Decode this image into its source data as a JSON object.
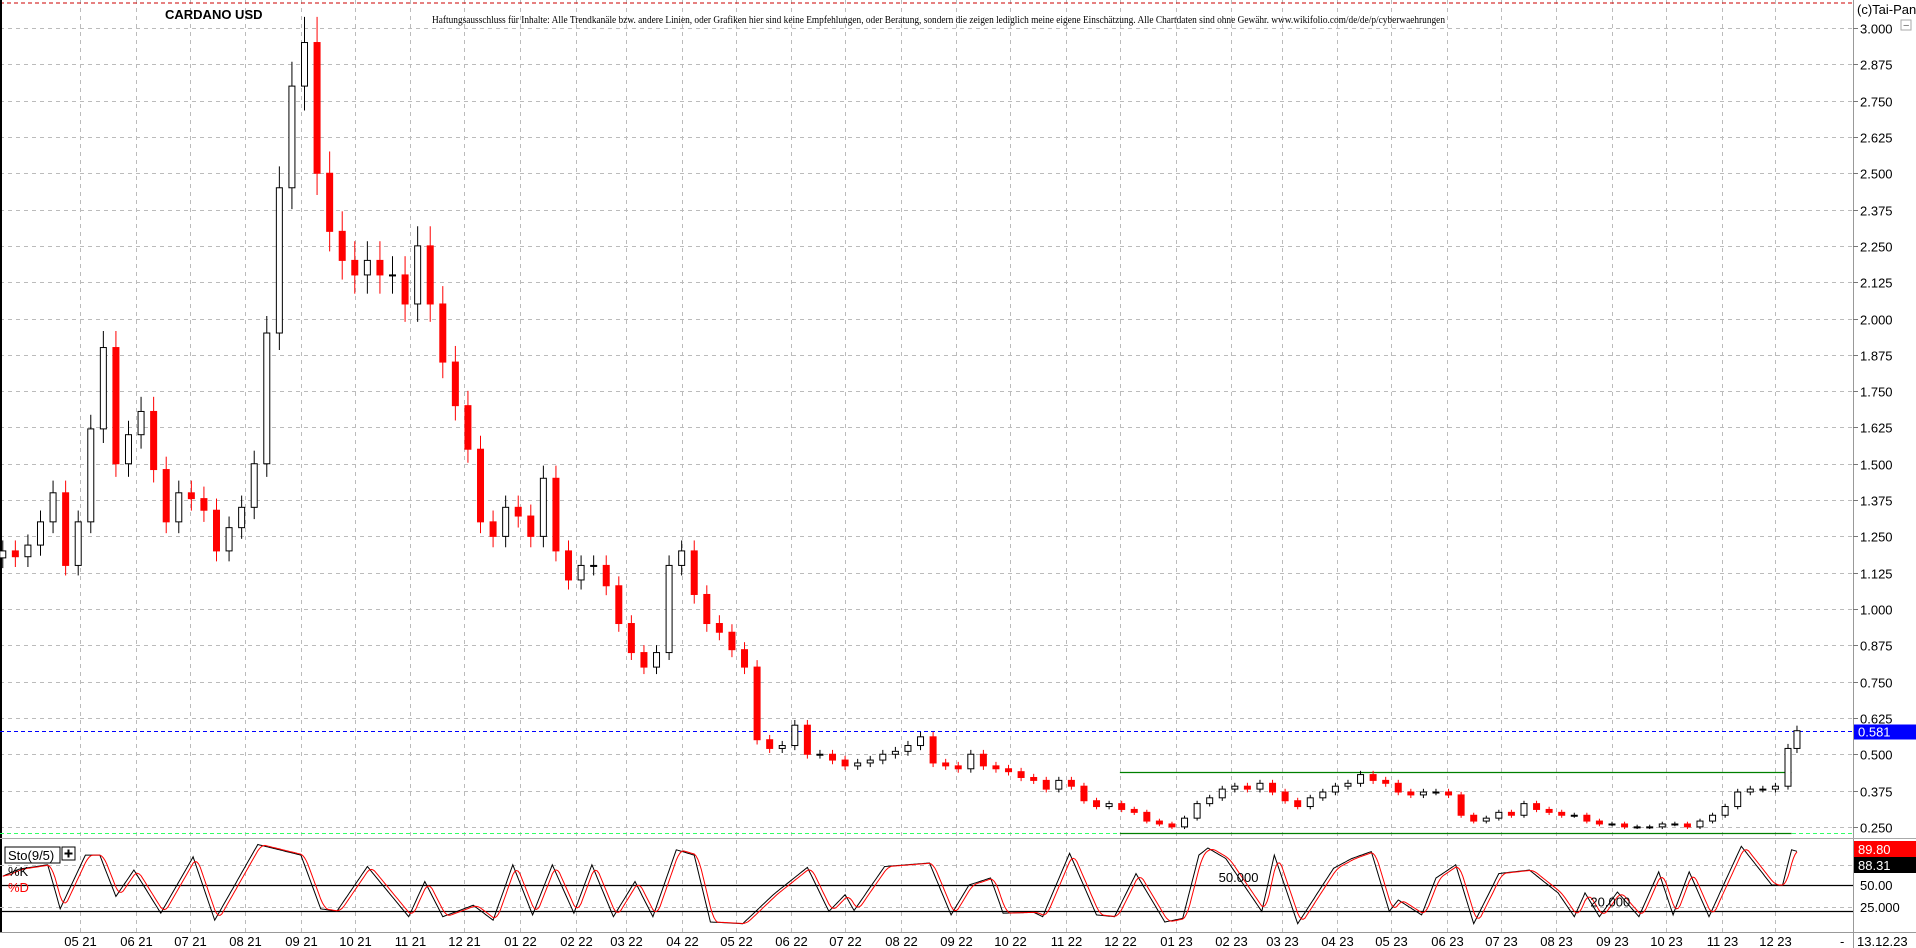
{
  "header": {
    "title": "CARDANO USD",
    "disclaimer": "Haftungsausschluss für Inhalte: Alle Trendkanäle bzw. andere Linien, oder Grafiken hier sind keine Empfehlungen, oder Beratung, sondern die zeigen lediglich meine eigene Einschätzung. Alle Chartdaten sind ohne Gewähr.  www.wikifolio.com/de/de/p/cyberwaehrungen",
    "copyright": "(c)Tai-Pan",
    "collapse_symbol": "−"
  },
  "footer": {
    "dash": "-",
    "current_date": "13.12.23"
  },
  "colors": {
    "up_fill": "#ffffff",
    "up_stroke": "#000000",
    "down": "#ff0000",
    "last_price_badge": "#0000ff",
    "support_line": "#008000",
    "support_dashed": "#33ff66",
    "top_line": "#cc0000",
    "k_line": "#000000",
    "d_line": "#ff0000"
  },
  "chart_data": {
    "type": "candlestick",
    "title": "CARDANO USD",
    "y_ticks": [
      "0.250",
      "0.375",
      "0.500",
      "0.625",
      "0.750",
      "0.875",
      "1.000",
      "1.125",
      "1.250",
      "1.375",
      "1.500",
      "1.625",
      "1.750",
      "1.875",
      "2.000",
      "2.125",
      "2.250",
      "2.375",
      "2.500",
      "2.625",
      "2.750",
      "2.875",
      "3.000"
    ],
    "ylim": [
      0.22,
      3.0
    ],
    "x_labels": [
      {
        "date": "2021-05-01",
        "label": "05 21"
      },
      {
        "date": "2021-06-01",
        "label": "06 21"
      },
      {
        "date": "2021-07-01",
        "label": "07 21"
      },
      {
        "date": "2021-08-01",
        "label": "08 21"
      },
      {
        "date": "2021-09-01",
        "label": "09 21"
      },
      {
        "date": "2021-10-01",
        "label": "10 21"
      },
      {
        "date": "2021-11-01",
        "label": "11 21"
      },
      {
        "date": "2021-12-01",
        "label": "12 21"
      },
      {
        "date": "2022-01-01",
        "label": "01 22"
      },
      {
        "date": "2022-02-01",
        "label": "02 22"
      },
      {
        "date": "2022-03-01",
        "label": "03 22"
      },
      {
        "date": "2022-04-01",
        "label": "04 22"
      },
      {
        "date": "2022-05-01",
        "label": "05 22"
      },
      {
        "date": "2022-06-01",
        "label": "06 22"
      },
      {
        "date": "2022-07-01",
        "label": "07 22"
      },
      {
        "date": "2022-08-01",
        "label": "08 22"
      },
      {
        "date": "2022-09-01",
        "label": "09 22"
      },
      {
        "date": "2022-10-01",
        "label": "10 22"
      },
      {
        "date": "2022-11-01",
        "label": "11 22"
      },
      {
        "date": "2022-12-01",
        "label": "12 22"
      },
      {
        "date": "2023-01-01",
        "label": "01 23"
      },
      {
        "date": "2023-02-01",
        "label": "02 23"
      },
      {
        "date": "2023-03-01",
        "label": "03 23"
      },
      {
        "date": "2023-04-01",
        "label": "04 23"
      },
      {
        "date": "2023-05-01",
        "label": "05 23"
      },
      {
        "date": "2023-06-01",
        "label": "06 23"
      },
      {
        "date": "2023-07-01",
        "label": "07 23"
      },
      {
        "date": "2023-08-01",
        "label": "08 23"
      },
      {
        "date": "2023-09-01",
        "label": "09 23"
      },
      {
        "date": "2023-10-01",
        "label": "10 23"
      },
      {
        "date": "2023-11-01",
        "label": "11 23"
      },
      {
        "date": "2023-12-01",
        "label": "12 23"
      }
    ],
    "start_date": "2021-03-19",
    "interval_days": 7,
    "weekly_closes": [
      1.2,
      1.18,
      1.22,
      1.3,
      1.4,
      1.15,
      1.3,
      1.62,
      1.9,
      1.5,
      1.6,
      1.68,
      1.48,
      1.3,
      1.4,
      1.38,
      1.34,
      1.2,
      1.28,
      1.35,
      1.5,
      1.95,
      2.45,
      2.8,
      2.95,
      2.5,
      2.3,
      2.2,
      2.15,
      2.2,
      2.15,
      2.15,
      2.05,
      2.25,
      2.05,
      1.85,
      1.7,
      1.55,
      1.3,
      1.25,
      1.35,
      1.32,
      1.25,
      1.45,
      1.2,
      1.1,
      1.15,
      1.15,
      1.08,
      0.95,
      0.85,
      0.8,
      0.85,
      1.15,
      1.2,
      1.05,
      0.95,
      0.92,
      0.86,
      0.8,
      0.55,
      0.52,
      0.53,
      0.6,
      0.5,
      0.5,
      0.48,
      0.46,
      0.47,
      0.48,
      0.5,
      0.51,
      0.53,
      0.56,
      0.47,
      0.46,
      0.45,
      0.5,
      0.46,
      0.45,
      0.44,
      0.42,
      0.41,
      0.38,
      0.41,
      0.39,
      0.34,
      0.32,
      0.33,
      0.31,
      0.3,
      0.27,
      0.26,
      0.25,
      0.28,
      0.33,
      0.35,
      0.38,
      0.39,
      0.38,
      0.4,
      0.37,
      0.34,
      0.32,
      0.35,
      0.37,
      0.39,
      0.4,
      0.43,
      0.41,
      0.4,
      0.37,
      0.36,
      0.37,
      0.37,
      0.36,
      0.29,
      0.27,
      0.28,
      0.3,
      0.29,
      0.33,
      0.31,
      0.3,
      0.29,
      0.29,
      0.27,
      0.26,
      0.26,
      0.25,
      0.25,
      0.25,
      0.26,
      0.26,
      0.25,
      0.27,
      0.29,
      0.32,
      0.37,
      0.38,
      0.38,
      0.39,
      0.52
    ],
    "final": {
      "date": "2023-12-13",
      "close": 0.581
    },
    "last_price_label": "0.581",
    "support_lines": [
      {
        "from": "2022-12-01",
        "to": "2023-12-10",
        "price": 0.44
      },
      {
        "from": "2022-12-01",
        "to": "2023-12-10",
        "price": 0.23
      }
    ],
    "support_dashed_price": 0.228,
    "last_price_line": 0.581,
    "stochastic": {
      "name": "Sto(9/5)",
      "k_label": "%K",
      "d_label": "%D",
      "d_period": 5,
      "ylim": [
        0,
        100
      ],
      "levels": [
        50,
        20
      ],
      "axis_labels": [
        {
          "value": 50,
          "label": "50.00"
        },
        {
          "value": 25,
          "label": "25.000"
        }
      ],
      "inline_labels": [
        {
          "value": 50,
          "date": "2023-01-25",
          "label": "50.000"
        },
        {
          "value": 22,
          "date": "2023-08-20",
          "label": "20.000"
        }
      ],
      "k_value_label": "88.31",
      "d_value_label": "89.80",
      "k_points": [
        [
          "2021-03-19",
          60
        ],
        [
          "2021-03-28",
          68
        ],
        [
          "2021-04-13",
          73
        ],
        [
          "2021-04-20",
          23
        ],
        [
          "2021-05-04",
          84
        ],
        [
          "2021-05-12",
          84
        ],
        [
          "2021-05-21",
          37
        ],
        [
          "2021-05-31",
          67
        ],
        [
          "2021-06-15",
          18
        ],
        [
          "2021-07-03",
          82
        ],
        [
          "2021-07-15",
          10
        ],
        [
          "2021-08-08",
          96
        ],
        [
          "2021-09-01",
          84
        ],
        [
          "2021-09-12",
          23
        ],
        [
          "2021-09-21",
          20
        ],
        [
          "2021-10-08",
          71
        ],
        [
          "2021-10-31",
          14
        ],
        [
          "2021-11-09",
          54
        ],
        [
          "2021-11-19",
          14
        ],
        [
          "2021-12-06",
          27
        ],
        [
          "2021-12-17",
          10
        ],
        [
          "2021-12-28",
          73
        ],
        [
          "2022-01-08",
          16
        ],
        [
          "2022-01-19",
          73
        ],
        [
          "2022-01-31",
          18
        ],
        [
          "2022-02-10",
          73
        ],
        [
          "2022-02-22",
          14
        ],
        [
          "2022-03-06",
          54
        ],
        [
          "2022-03-16",
          14
        ],
        [
          "2022-03-29",
          90
        ],
        [
          "2022-04-08",
          84
        ],
        [
          "2022-04-17",
          8
        ],
        [
          "2022-05-05",
          6
        ],
        [
          "2022-05-22",
          39
        ],
        [
          "2022-06-10",
          70
        ],
        [
          "2022-06-22",
          20
        ],
        [
          "2022-07-01",
          39
        ],
        [
          "2022-07-06",
          21
        ],
        [
          "2022-07-23",
          71
        ],
        [
          "2022-08-17",
          75
        ],
        [
          "2022-08-29",
          16
        ],
        [
          "2022-09-08",
          50
        ],
        [
          "2022-09-20",
          58
        ],
        [
          "2022-09-27",
          18
        ],
        [
          "2022-10-14",
          19
        ],
        [
          "2022-10-19",
          14
        ],
        [
          "2022-11-03",
          86
        ],
        [
          "2022-11-18",
          16
        ],
        [
          "2022-11-28",
          14
        ],
        [
          "2022-12-10",
          63
        ],
        [
          "2022-12-26",
          8
        ],
        [
          "2023-01-05",
          12
        ],
        [
          "2023-01-14",
          84
        ],
        [
          "2023-01-19",
          92
        ],
        [
          "2023-01-29",
          80
        ],
        [
          "2023-02-18",
          20
        ],
        [
          "2023-02-25",
          84
        ],
        [
          "2023-03-10",
          6
        ],
        [
          "2023-03-30",
          69
        ],
        [
          "2023-04-09",
          80
        ],
        [
          "2023-04-20",
          88
        ],
        [
          "2023-04-30",
          20
        ],
        [
          "2023-05-05",
          33
        ],
        [
          "2023-05-18",
          16
        ],
        [
          "2023-05-26",
          58
        ],
        [
          "2023-06-06",
          73
        ],
        [
          "2023-06-16",
          6
        ],
        [
          "2023-06-30",
          63
        ],
        [
          "2023-07-17",
          67
        ],
        [
          "2023-08-02",
          41
        ],
        [
          "2023-08-11",
          14
        ],
        [
          "2023-08-17",
          41
        ],
        [
          "2023-08-25",
          14
        ],
        [
          "2023-09-04",
          42
        ],
        [
          "2023-09-16",
          14
        ],
        [
          "2023-09-27",
          65
        ],
        [
          "2023-10-05",
          16
        ],
        [
          "2023-10-14",
          65
        ],
        [
          "2023-10-25",
          14
        ],
        [
          "2023-11-12",
          94
        ],
        [
          "2023-11-29",
          50
        ],
        [
          "2023-12-05",
          50
        ],
        [
          "2023-12-10",
          90
        ],
        [
          "2023-12-13",
          88.31
        ]
      ]
    }
  }
}
